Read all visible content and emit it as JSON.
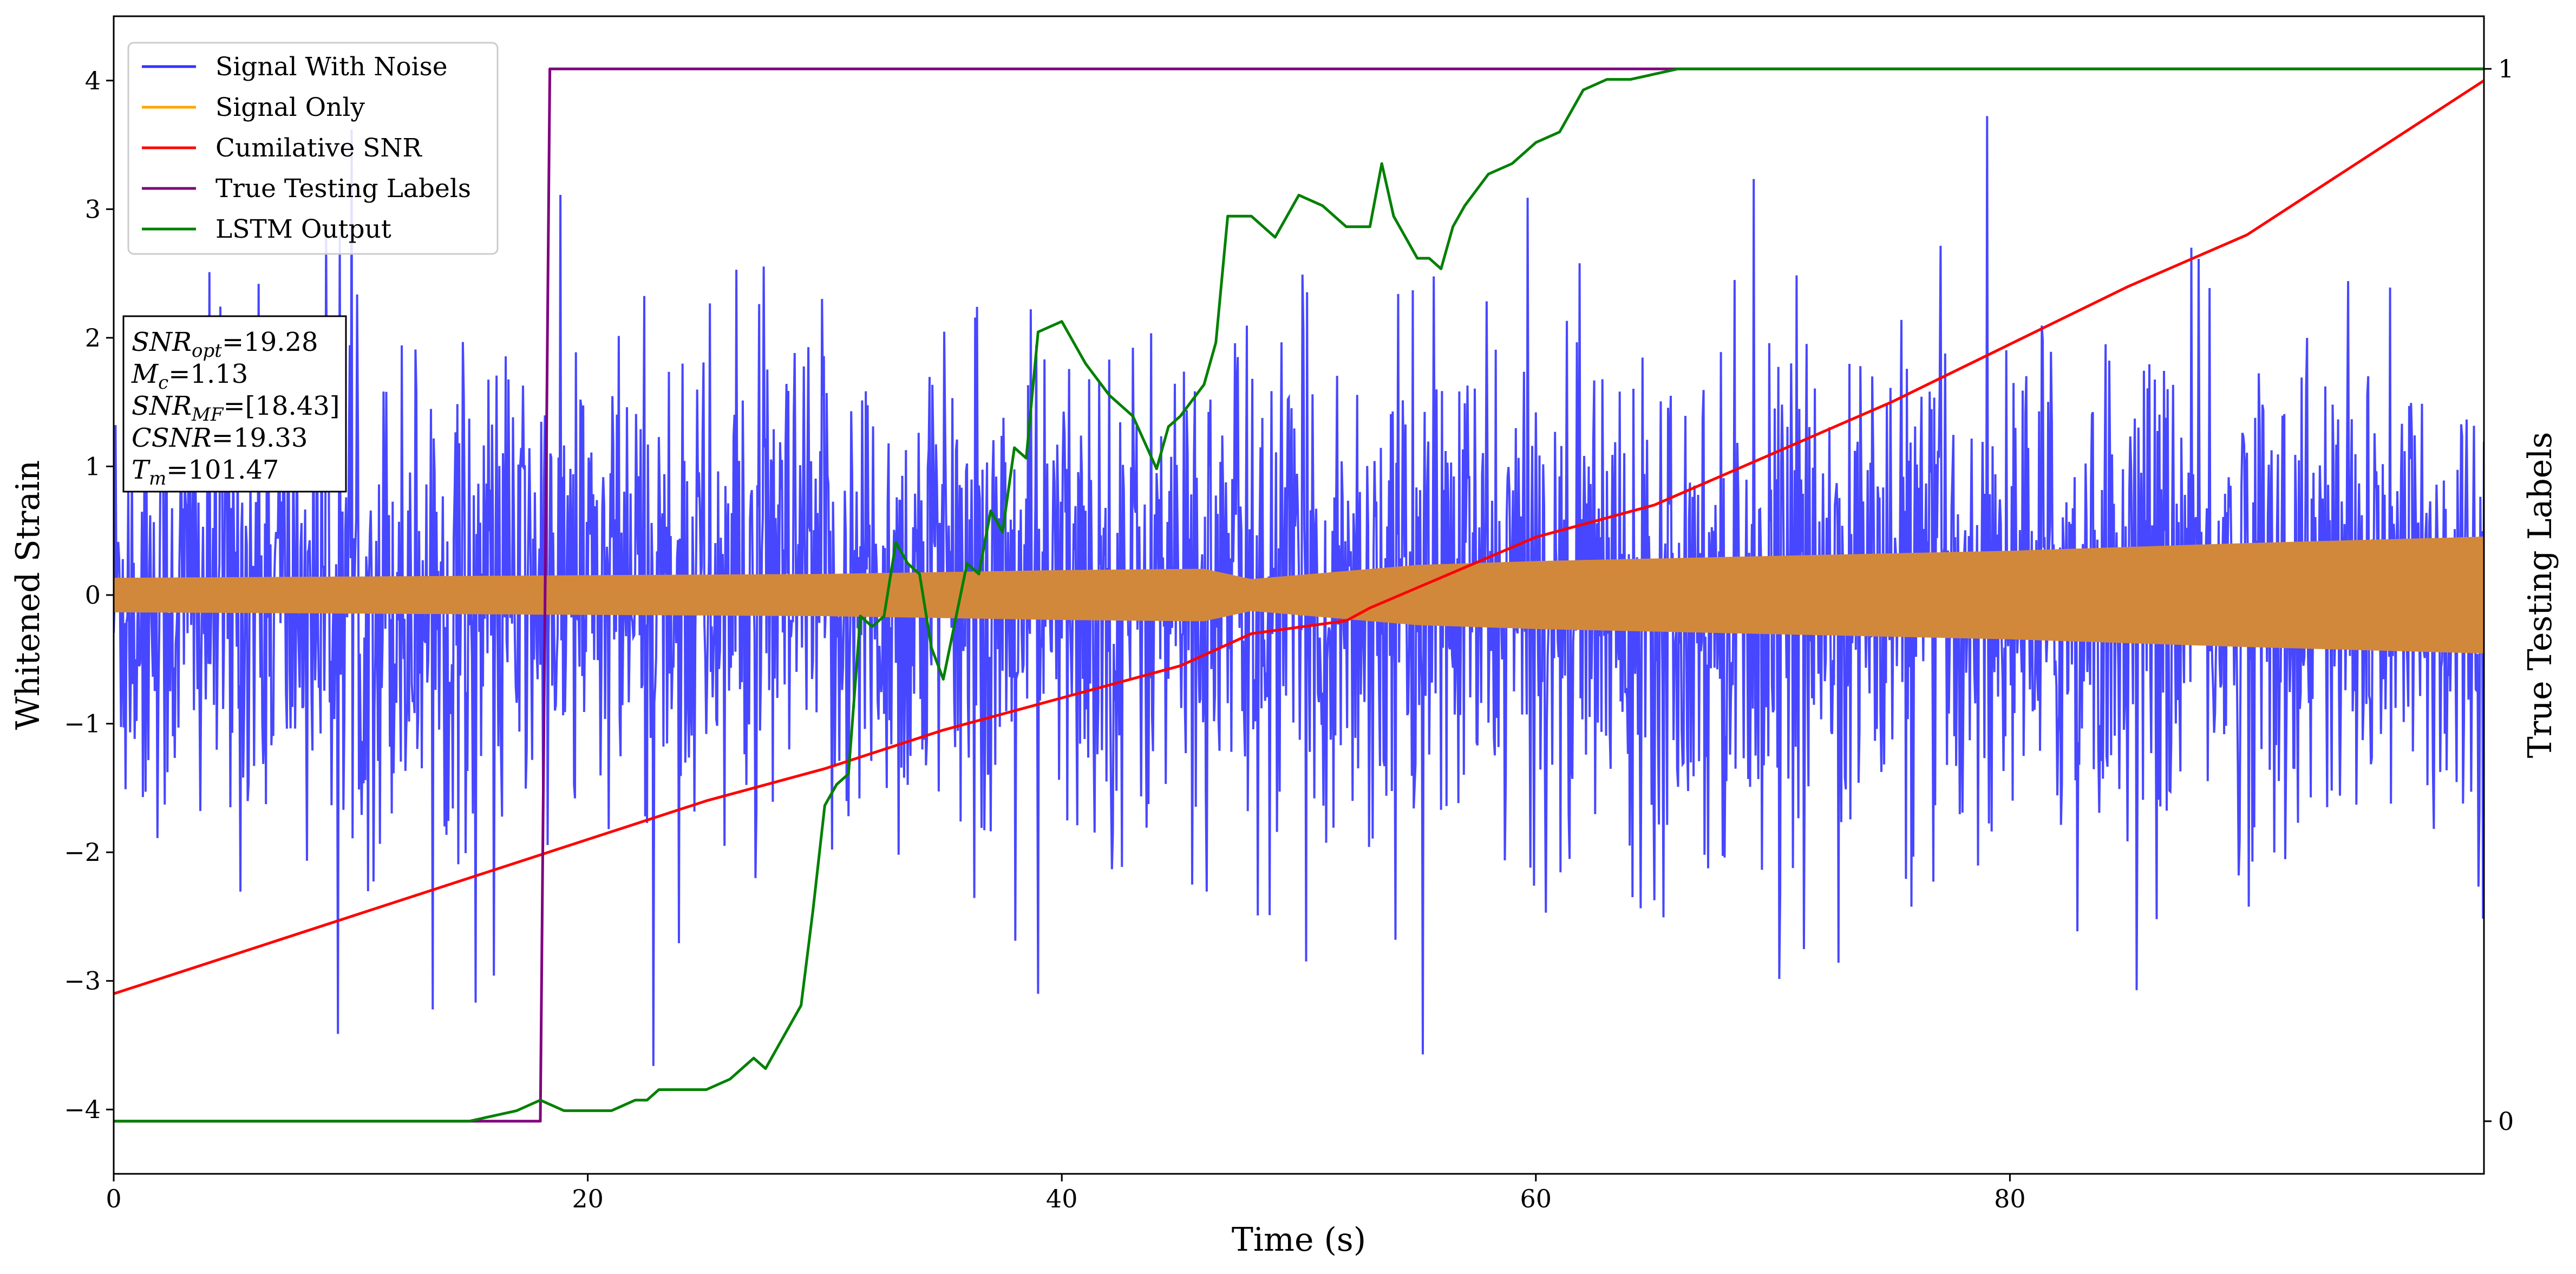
{
  "chart_data": {
    "type": "line",
    "xlabel": "Time (s)",
    "ylabel_left": "Whitened Strain",
    "ylabel_right": "True Testing Labels",
    "xlim": [
      0,
      100
    ],
    "ylim_left": [
      -4.5,
      4.5
    ],
    "ylim_right": [
      -0.05,
      1.05
    ],
    "x_ticks": [
      0,
      20,
      40,
      60,
      80
    ],
    "y_ticks_left": [
      -4,
      -3,
      -2,
      -1,
      0,
      1,
      2,
      3,
      4
    ],
    "y_ticks_right": [
      0,
      1
    ],
    "grid": false,
    "legend_position": "upper-left",
    "legend": [
      {
        "label": "Signal With Noise",
        "color": "#3333ff"
      },
      {
        "label": "Signal Only",
        "color": "#ffa500"
      },
      {
        "label": "Cumilative SNR",
        "color": "#ff0000"
      },
      {
        "label": "True Testing Labels",
        "color": "#800080"
      },
      {
        "label": "LSTM Output",
        "color": "#008000"
      }
    ],
    "info_box": [
      {
        "sym": "SNR",
        "sub": "opt",
        "val": "=19.28"
      },
      {
        "sym": "M",
        "sub": "c",
        "val": "=1.13"
      },
      {
        "sym": "SNR",
        "sub": "MF",
        "val": "=[18.43]"
      },
      {
        "sym": "CSNR",
        "sub": "",
        "val": "=19.33"
      },
      {
        "sym": "T",
        "sub": "m",
        "val": "=101.47"
      }
    ],
    "series": [
      {
        "name": "Signal With Noise",
        "axis": "left",
        "color": "#3333ff",
        "description": "white noise band, typical range about -2.5 to 2.5 with peaks reaching about ±4"
      },
      {
        "name": "Signal Only",
        "axis": "left",
        "color": "#d2883a",
        "envelope": {
          "x": [
            0,
            10,
            20,
            30,
            40,
            46,
            48,
            55,
            60,
            70,
            80,
            90,
            100
          ],
          "amplitude": [
            0.13,
            0.14,
            0.15,
            0.16,
            0.19,
            0.2,
            0.12,
            0.23,
            0.26,
            0.3,
            0.34,
            0.4,
            0.45
          ]
        }
      },
      {
        "name": "Cumilative SNR",
        "axis": "left",
        "color": "#ff0000",
        "x": [
          0,
          5,
          10,
          15,
          20,
          25,
          30,
          35,
          40,
          45,
          48,
          52,
          53,
          60,
          65,
          70,
          75,
          80,
          85,
          90,
          95,
          100
        ],
        "y": [
          -3.1,
          -2.8,
          -2.5,
          -2.2,
          -1.9,
          -1.6,
          -1.35,
          -1.05,
          -0.8,
          -0.55,
          -0.3,
          -0.2,
          -0.1,
          0.45,
          0.7,
          1.1,
          1.5,
          1.95,
          2.4,
          2.8,
          3.4,
          4.0
        ]
      },
      {
        "name": "True Testing Labels",
        "axis": "right",
        "color": "#800080",
        "x": [
          0,
          18,
          18.4,
          100
        ],
        "y": [
          0,
          0,
          1,
          1
        ]
      },
      {
        "name": "LSTM Output",
        "axis": "right",
        "color": "#008000",
        "x": [
          0,
          15,
          17,
          18,
          19,
          20,
          21,
          22,
          22.5,
          23,
          24,
          25,
          26,
          27,
          27.5,
          28,
          29,
          29.5,
          30,
          30.5,
          31,
          31.5,
          32,
          32.5,
          33,
          33.5,
          34,
          34.5,
          35,
          36,
          36.5,
          37,
          37.5,
          38,
          38.5,
          39,
          40,
          41,
          42,
          43,
          44,
          44.5,
          45,
          46,
          46.5,
          47,
          48,
          49,
          50,
          51,
          52,
          53,
          53.5,
          54,
          55,
          55.5,
          56,
          56.5,
          57,
          58,
          59,
          60,
          61,
          62,
          63,
          64,
          66,
          70,
          100
        ],
        "y": [
          0,
          0,
          0.01,
          0.02,
          0.01,
          0.01,
          0.01,
          0.02,
          0.02,
          0.03,
          0.03,
          0.03,
          0.04,
          0.06,
          0.05,
          0.07,
          0.11,
          0.2,
          0.3,
          0.32,
          0.33,
          0.48,
          0.47,
          0.48,
          0.55,
          0.53,
          0.52,
          0.45,
          0.42,
          0.53,
          0.52,
          0.58,
          0.56,
          0.64,
          0.63,
          0.75,
          0.76,
          0.72,
          0.69,
          0.67,
          0.62,
          0.66,
          0.67,
          0.7,
          0.74,
          0.86,
          0.86,
          0.84,
          0.88,
          0.87,
          0.85,
          0.85,
          0.91,
          0.86,
          0.82,
          0.82,
          0.81,
          0.85,
          0.87,
          0.9,
          0.91,
          0.93,
          0.94,
          0.98,
          0.99,
          0.99,
          1.0,
          1.0,
          1.0
        ]
      }
    ]
  }
}
